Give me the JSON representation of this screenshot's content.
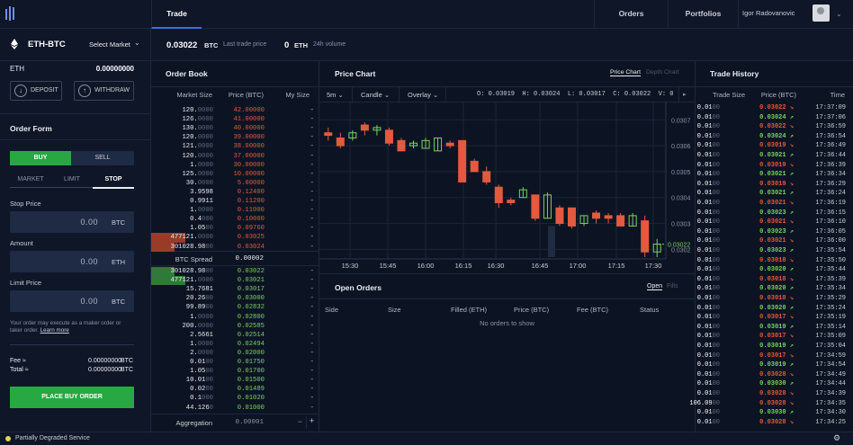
{
  "nav": {
    "trade": "Trade",
    "orders": "Orders",
    "portfolios": "Portfolios",
    "user": "Igor Radovanovic"
  },
  "market": {
    "pair": "ETH-BTC",
    "select_label": "Select Market",
    "last_price": "0.03022",
    "last_price_unit": "BTC",
    "last_price_label": "Last trade price",
    "volume": "0",
    "volume_unit": "ETH",
    "volume_label": "24h volume"
  },
  "wallet": {
    "currency": "ETH",
    "balance": "0.00000000",
    "deposit": "DEPOSIT",
    "withdraw": "WITHDRAW"
  },
  "order_form": {
    "title": "Order Form",
    "buy": "BUY",
    "sell": "SELL",
    "types": [
      "MARKET",
      "LIMIT",
      "STOP"
    ],
    "stop_price_label": "Stop Price",
    "stop_price": "0.00",
    "stop_unit": "BTC",
    "amount_label": "Amount",
    "amount": "0.00",
    "amount_unit": "ETH",
    "limit_price_label": "Limit Price",
    "limit_price": "0.00",
    "limit_unit": "BTC",
    "note": "Your order may execute as a maker order or taker order.",
    "note_link": "Learn more",
    "fee_label": "Fee ≈",
    "fee": "0.00000000",
    "fee_unit": "BTC",
    "total_label": "Total ≈",
    "total": "0.00000000",
    "total_unit": "BTC",
    "submit": "PLACE BUY ORDER"
  },
  "order_book": {
    "title": "Order Book",
    "cols": [
      "Market Size",
      "Price (BTC)",
      "My Size"
    ],
    "asks": [
      [
        "120.",
        "0000",
        "42.00000"
      ],
      [
        "126.",
        "0000",
        "41.00000"
      ],
      [
        "130.",
        "0000",
        "40.00000"
      ],
      [
        "120.",
        "0000",
        "39.00000"
      ],
      [
        "121.",
        "0000",
        "38.00000"
      ],
      [
        "120.",
        "0000",
        "37.00000"
      ],
      [
        "1.",
        "0000",
        "30.00000"
      ],
      [
        "125.",
        "0000",
        "10.00000"
      ],
      [
        "30.",
        "0000",
        "5.00000"
      ],
      [
        "3.9598",
        "",
        "0.12400"
      ],
      [
        "0.9911",
        "",
        "0.11200"
      ],
      [
        "1.",
        "0000",
        "0.11000"
      ],
      [
        "0.4",
        "000",
        "0.10000"
      ],
      [
        "1.05",
        "00",
        "0.09760"
      ],
      [
        "477121.",
        "0000",
        "0.03025"
      ],
      [
        "301028.98",
        "00",
        "0.03024"
      ]
    ],
    "spread_label": "BTC Spread",
    "spread": "0.00002",
    "bids": [
      [
        "301028.98",
        "00",
        "0.03022"
      ],
      [
        "477121.",
        "0000",
        "0.03021"
      ],
      [
        "15.7681",
        "",
        "0.03017"
      ],
      [
        "20.26",
        "00",
        "0.03000"
      ],
      [
        "99.89",
        "00",
        "0.02832"
      ],
      [
        "1.",
        "0000",
        "0.02800"
      ],
      [
        "200.",
        "0000",
        "0.02585"
      ],
      [
        "2.5661",
        "",
        "0.02514"
      ],
      [
        "1.",
        "0000",
        "0.02494"
      ],
      [
        "2.",
        "0000",
        "0.02000"
      ],
      [
        "0.01",
        "00",
        "0.01750"
      ],
      [
        "1.05",
        "00",
        "0.01700"
      ],
      [
        "10.01",
        "00",
        "0.01500"
      ],
      [
        "0.02",
        "00",
        "0.01489"
      ],
      [
        "0.1",
        "000",
        "0.01020"
      ],
      [
        "44.126",
        "0",
        "0.01000"
      ]
    ],
    "my_size": "-",
    "aggregation_label": "Aggregation",
    "aggregation": "0.00001",
    "minus": "−",
    "plus": "+"
  },
  "price_chart": {
    "title": "Price Chart",
    "tab_active": "Price Chart",
    "tab_other": "Depth Chart",
    "interval": "5m",
    "style": "Candle",
    "overlay": "Overlay",
    "ohlc": "O: 0.03019  H: 0.03024  L: 0.03017  C: 0.03022  V: 0",
    "current": "0.03022",
    "y_ticks": [
      "0.0307",
      "0.0306",
      "0.0305",
      "0.0304",
      "0.0303",
      "0.0302"
    ],
    "x_ticks": [
      "5",
      "15:30",
      "15:45",
      "16:00",
      "16:15",
      "16:30",
      "16:45",
      "17:00",
      "17:15",
      "17:30"
    ]
  },
  "chart_data": {
    "type": "candlestick",
    "ylim": [
      0.03017,
      0.03076
    ],
    "candles": [
      [
        0.03064,
        0.03067,
        0.03062,
        0.03065,
        "down"
      ],
      [
        0.03063,
        0.03065,
        0.03059,
        0.0306,
        "down"
      ],
      [
        0.03063,
        0.03066,
        0.03062,
        0.03065,
        "up"
      ],
      [
        0.03068,
        0.03069,
        0.03064,
        0.03066,
        "down"
      ],
      [
        0.03066,
        0.03068,
        0.03064,
        0.03067,
        "up"
      ],
      [
        0.03066,
        0.03067,
        0.0306,
        0.03061,
        "down"
      ],
      [
        0.03062,
        0.03063,
        0.03058,
        0.03058,
        "down"
      ],
      [
        0.0306,
        0.03062,
        0.03059,
        0.03061,
        "up"
      ],
      [
        0.03059,
        0.03063,
        0.03059,
        0.03062,
        "up"
      ],
      [
        0.03058,
        0.03063,
        0.03058,
        0.03063,
        "up"
      ],
      [
        0.03061,
        0.03062,
        0.03059,
        0.0306,
        "down"
      ],
      [
        0.03062,
        0.03062,
        0.03046,
        0.03046,
        "down"
      ],
      [
        0.03054,
        0.03055,
        0.0305,
        0.0305,
        "down"
      ],
      [
        0.0305,
        0.03052,
        0.03045,
        0.03046,
        "down"
      ],
      [
        0.03044,
        0.03045,
        0.03036,
        0.03038,
        "down"
      ],
      [
        0.03039,
        0.0304,
        0.03037,
        0.03038,
        "down"
      ],
      [
        0.0304,
        0.03044,
        0.0304,
        0.03043,
        "up"
      ],
      [
        0.03041,
        0.03041,
        0.03031,
        0.03032,
        "down"
      ],
      [
        0.03032,
        0.03042,
        0.03032,
        0.03041,
        "up"
      ],
      [
        0.03036,
        0.03037,
        0.03029,
        0.0303,
        "down"
      ],
      [
        0.03036,
        0.03036,
        0.03028,
        0.03029,
        "down"
      ],
      [
        0.0303,
        0.03033,
        0.03029,
        0.03033,
        "up"
      ],
      [
        0.03034,
        0.03035,
        0.0303,
        0.03032,
        "down"
      ],
      [
        0.03033,
        0.03034,
        0.0303,
        0.03032,
        "down"
      ],
      [
        0.03033,
        0.03034,
        0.03029,
        0.03029,
        "down"
      ],
      [
        0.03029,
        0.03034,
        0.03029,
        0.03033,
        "up"
      ],
      [
        0.03031,
        0.03033,
        0.03017,
        0.03019,
        "down"
      ],
      [
        0.03019,
        0.03024,
        0.03017,
        0.03022,
        "up"
      ]
    ]
  },
  "open_orders": {
    "title": "Open Orders",
    "tab_open": "Open",
    "tab_fills": "Fills",
    "cols": [
      "Side",
      "Size",
      "Filled (ETH)",
      "Price (BTC)",
      "Fee (BTC)",
      "Status"
    ],
    "empty": "No orders to show"
  },
  "trade_history": {
    "title": "Trade History",
    "cols": [
      "Trade Size",
      "Price (BTC)",
      "Time"
    ],
    "rows": [
      [
        "0.01",
        "00",
        "0.03022",
        "dn",
        "17:37:09"
      ],
      [
        "0.01",
        "00",
        "0.03024",
        "up",
        "17:37:06"
      ],
      [
        "0.01",
        "00",
        "0.03022",
        "dn",
        "17:36:59"
      ],
      [
        "0.01",
        "00",
        "0.03024",
        "up",
        "17:36:54"
      ],
      [
        "0.01",
        "00",
        "0.03019",
        "dn",
        "17:36:49"
      ],
      [
        "0.01",
        "00",
        "0.03021",
        "up",
        "17:36:44"
      ],
      [
        "0.01",
        "00",
        "0.03019",
        "dn",
        "17:36:39"
      ],
      [
        "0.01",
        "00",
        "0.03021",
        "up",
        "17:36:34"
      ],
      [
        "0.01",
        "00",
        "0.03019",
        "dn",
        "17:36:29"
      ],
      [
        "0.01",
        "00",
        "0.03021",
        "up",
        "17:36:24"
      ],
      [
        "0.01",
        "00",
        "0.03021",
        "dn",
        "17:36:19"
      ],
      [
        "0.01",
        "00",
        "0.03023",
        "up",
        "17:36:15"
      ],
      [
        "0.01",
        "00",
        "0.03021",
        "dn",
        "17:36:10"
      ],
      [
        "0.01",
        "00",
        "0.03023",
        "up",
        "17:36:05"
      ],
      [
        "0.01",
        "00",
        "0.03021",
        "dn",
        "17:36:00"
      ],
      [
        "0.01",
        "00",
        "0.03023",
        "up",
        "17:35:54"
      ],
      [
        "0.01",
        "00",
        "0.03018",
        "dn",
        "17:35:50"
      ],
      [
        "0.01",
        "00",
        "0.03020",
        "up",
        "17:35:44"
      ],
      [
        "0.01",
        "00",
        "0.03018",
        "dn",
        "17:35:39"
      ],
      [
        "0.01",
        "00",
        "0.03020",
        "up",
        "17:35:34"
      ],
      [
        "0.01",
        "00",
        "0.03018",
        "dn",
        "17:35:29"
      ],
      [
        "0.01",
        "00",
        "0.03020",
        "up",
        "17:35:24"
      ],
      [
        "0.01",
        "00",
        "0.03017",
        "dn",
        "17:35:19"
      ],
      [
        "0.01",
        "00",
        "0.03019",
        "up",
        "17:35:14"
      ],
      [
        "0.01",
        "00",
        "0.03017",
        "dn",
        "17:35:09"
      ],
      [
        "0.01",
        "00",
        "0.03019",
        "up",
        "17:35:04"
      ],
      [
        "0.01",
        "00",
        "0.03017",
        "dn",
        "17:34:59"
      ],
      [
        "0.01",
        "00",
        "0.03019",
        "up",
        "17:34:54"
      ],
      [
        "0.01",
        "00",
        "0.03028",
        "dn",
        "17:34:49"
      ],
      [
        "0.01",
        "00",
        "0.03030",
        "up",
        "17:34:44"
      ],
      [
        "0.01",
        "00",
        "0.03028",
        "dn",
        "17:34:39"
      ],
      [
        "106.09",
        "00",
        "0.03028",
        "dn",
        "17:34:35"
      ],
      [
        "0.01",
        "00",
        "0.03030",
        "up",
        "17:34:30"
      ],
      [
        "0.01",
        "00",
        "0.03028",
        "dn",
        "17:34:25"
      ]
    ]
  },
  "status": {
    "text": "Partially Degraded Service"
  },
  "colors": {
    "up": "#7cd164",
    "down": "#e35a3e",
    "buy": "#27a843",
    "accent": "#3b6fd6"
  }
}
